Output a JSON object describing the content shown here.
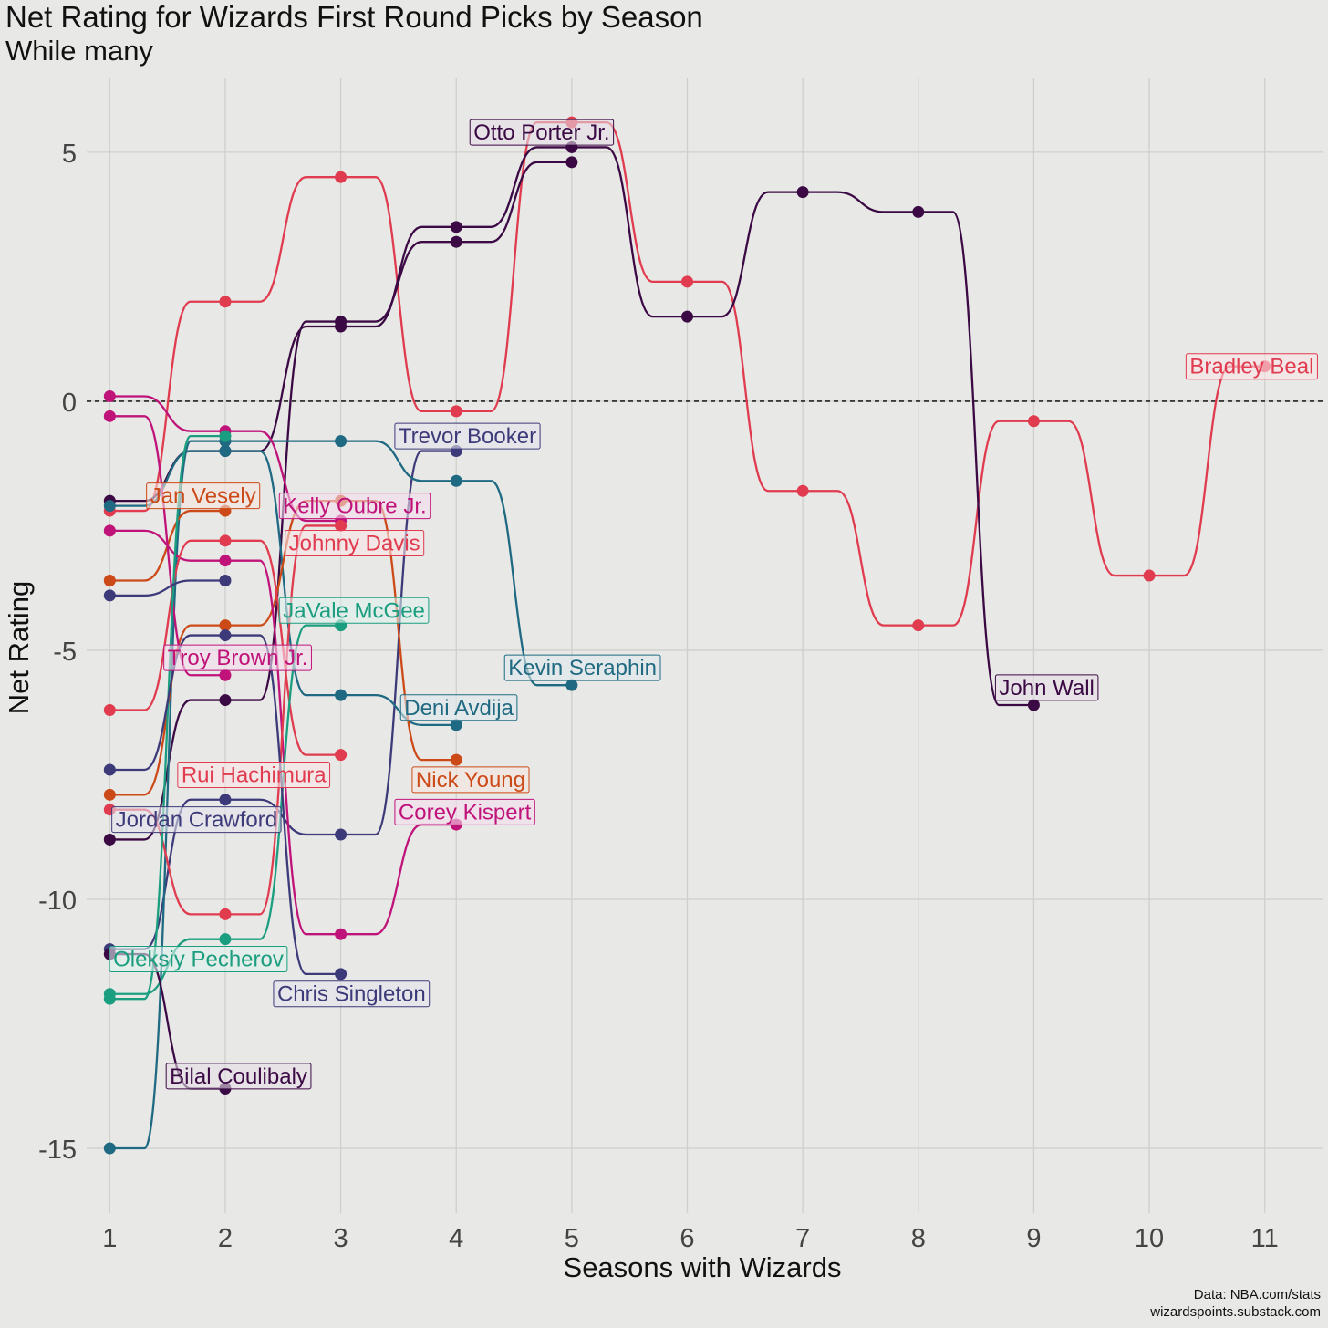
{
  "chart_data": {
    "type": "line",
    "title": "Net Rating for Wizards First Round Picks by Season",
    "subtitle": "While many",
    "xlabel": "Seasons with Wizards",
    "ylabel": "Net Rating",
    "xlim": [
      0.8,
      11.5
    ],
    "ylim": [
      -16.3,
      6.5
    ],
    "x_ticks": [
      1,
      2,
      3,
      4,
      5,
      6,
      7,
      8,
      9,
      10,
      11
    ],
    "y_ticks": [
      5,
      0,
      -5,
      -10,
      -15
    ],
    "y_tick_labels": [
      "5",
      "0",
      "-5",
      "-10",
      "-15"
    ],
    "reference_line": 0,
    "grid": true,
    "legend": "none (direct labels)",
    "series": [
      {
        "name": "Bradley Beal",
        "color": "#e03b4f",
        "x": [
          1,
          2,
          3,
          4,
          5,
          6,
          7,
          8,
          9,
          10,
          11
        ],
        "values": [
          -2.2,
          2.0,
          4.5,
          -0.2,
          5.6,
          2.4,
          -1.8,
          -4.5,
          -0.4,
          -3.5,
          0.7
        ]
      },
      {
        "name": "John Wall",
        "color": "#3b0a45",
        "x": [
          1,
          2,
          3,
          4,
          5,
          6,
          7,
          8,
          9
        ],
        "values": [
          -2.0,
          -1.0,
          1.5,
          3.5,
          5.1,
          1.7,
          4.2,
          3.8,
          -6.1
        ]
      },
      {
        "name": "Otto Porter Jr.",
        "color": "#3b0a45",
        "x": [
          1,
          2,
          3,
          4,
          5
        ],
        "values": [
          -8.8,
          -6.0,
          1.6,
          3.2,
          4.8
        ]
      },
      {
        "name": "Trevor Booker",
        "color": "#3d3a7a",
        "x": [
          1,
          2,
          3,
          4
        ],
        "values": [
          -11.0,
          -8.0,
          -8.7,
          -1.0
        ]
      },
      {
        "name": "Kevin Seraphin",
        "color": "#1f6a82",
        "x": [
          1,
          2,
          3,
          4,
          5
        ],
        "values": [
          -15.0,
          -0.8,
          -0.8,
          -1.6,
          -5.7
        ]
      },
      {
        "name": "Deni Avdija",
        "color": "#1f6a82",
        "x": [
          1,
          2,
          3,
          4
        ],
        "values": [
          -2.1,
          -1.0,
          -5.9,
          -6.5
        ]
      },
      {
        "name": "Jan Vesely",
        "color": "#cc4a17",
        "x": [
          1,
          2
        ],
        "values": [
          -3.6,
          -2.2
        ]
      },
      {
        "name": "Nick Young",
        "color": "#cc4a17",
        "x": [
          1,
          2,
          3,
          4
        ],
        "values": [
          -7.9,
          -4.5,
          -2.0,
          -7.2
        ]
      },
      {
        "name": "Kelly Oubre Jr.",
        "color": "#c0137a",
        "x": [
          1,
          2,
          3
        ],
        "values": [
          0.1,
          -0.6,
          -2.4
        ]
      },
      {
        "name": "Troy Brown Jr.",
        "color": "#c0137a",
        "x": [
          1,
          2
        ],
        "values": [
          -0.3,
          -5.5
        ]
      },
      {
        "name": "Corey Kispert",
        "color": "#c0137a",
        "x": [
          1,
          2,
          3,
          4
        ],
        "values": [
          -2.6,
          -3.2,
          -10.7,
          -8.5
        ]
      },
      {
        "name": "Johnny Davis",
        "color": "#e03b4f",
        "x": [
          1,
          2,
          3
        ],
        "values": [
          -8.2,
          -10.3,
          -2.5
        ]
      },
      {
        "name": "Rui Hachimura",
        "color": "#e03b4f",
        "x": [
          1,
          2,
          3
        ],
        "values": [
          -6.2,
          -2.8,
          -7.1
        ]
      },
      {
        "name": "JaVale McGee",
        "color": "#1a9e7f",
        "x": [
          1,
          2,
          3
        ],
        "values": [
          -11.9,
          -10.8,
          -4.5
        ]
      },
      {
        "name": "Oleksiy Pecherov",
        "color": "#1a9e7f",
        "x": [
          1,
          2
        ],
        "values": [
          -12.0,
          -0.7
        ]
      },
      {
        "name": "Jordan Crawford",
        "color": "#3d3a7a",
        "x": [
          1,
          2
        ],
        "values": [
          -3.9,
          -3.6
        ]
      },
      {
        "name": "Chris Singleton",
        "color": "#3d3a7a",
        "x": [
          1,
          2,
          3
        ],
        "values": [
          -7.4,
          -4.7,
          -11.5
        ]
      },
      {
        "name": "Bilal Coulibaly",
        "color": "#3b0a45",
        "x": [
          1,
          2
        ],
        "values": [
          -11.1,
          -13.8
        ]
      }
    ],
    "labels": [
      {
        "text": "Otto Porter Jr.",
        "color": "#3b0a45",
        "x": 4.15,
        "y": 5.4
      },
      {
        "text": "Bradley Beal",
        "color": "#e03b4f",
        "x": 10.35,
        "y": 0.7
      },
      {
        "text": "Trevor Booker",
        "color": "#3d3a7a",
        "x": 3.5,
        "y": -0.7
      },
      {
        "text": "Jan Vesely",
        "color": "#cc4a17",
        "x": 1.35,
        "y": -1.9
      },
      {
        "text": "Kelly Oubre Jr.",
        "color": "#c0137a",
        "x": 2.5,
        "y": -2.1
      },
      {
        "text": "Johnny Davis",
        "color": "#e03b4f",
        "x": 2.55,
        "y": -2.85
      },
      {
        "text": "JaVale McGee",
        "color": "#1a9e7f",
        "x": 2.5,
        "y": -4.2
      },
      {
        "text": "Troy Brown Jr.",
        "color": "#c0137a",
        "x": 1.5,
        "y": -5.15
      },
      {
        "text": "Kevin Seraphin",
        "color": "#1f6a82",
        "x": 4.45,
        "y": -5.35
      },
      {
        "text": "John Wall",
        "color": "#3b0a45",
        "x": 8.7,
        "y": -5.75
      },
      {
        "text": "Deni Avdija",
        "color": "#1f6a82",
        "x": 3.55,
        "y": -6.15
      },
      {
        "text": "Rui Hachimura",
        "color": "#e03b4f",
        "x": 1.62,
        "y": -7.5
      },
      {
        "text": "Nick Young",
        "color": "#cc4a17",
        "x": 3.65,
        "y": -7.6
      },
      {
        "text": "Corey Kispert",
        "color": "#c0137a",
        "x": 3.5,
        "y": -8.25
      },
      {
        "text": "Jordan Crawford",
        "color": "#3d3a7a",
        "x": 1.05,
        "y": -8.4
      },
      {
        "text": "Oleksiy Pecherov",
        "color": "#1a9e7f",
        "x": 1.03,
        "y": -11.2
      },
      {
        "text": "Chris Singleton",
        "color": "#3d3a7a",
        "x": 2.45,
        "y": -11.9
      },
      {
        "text": "Bilal Coulibaly",
        "color": "#3b0a45",
        "x": 1.52,
        "y": -13.55
      }
    ]
  },
  "credit": {
    "line1": "Data: NBA.com/stats",
    "line2": "wizardspoints.substack.com"
  }
}
